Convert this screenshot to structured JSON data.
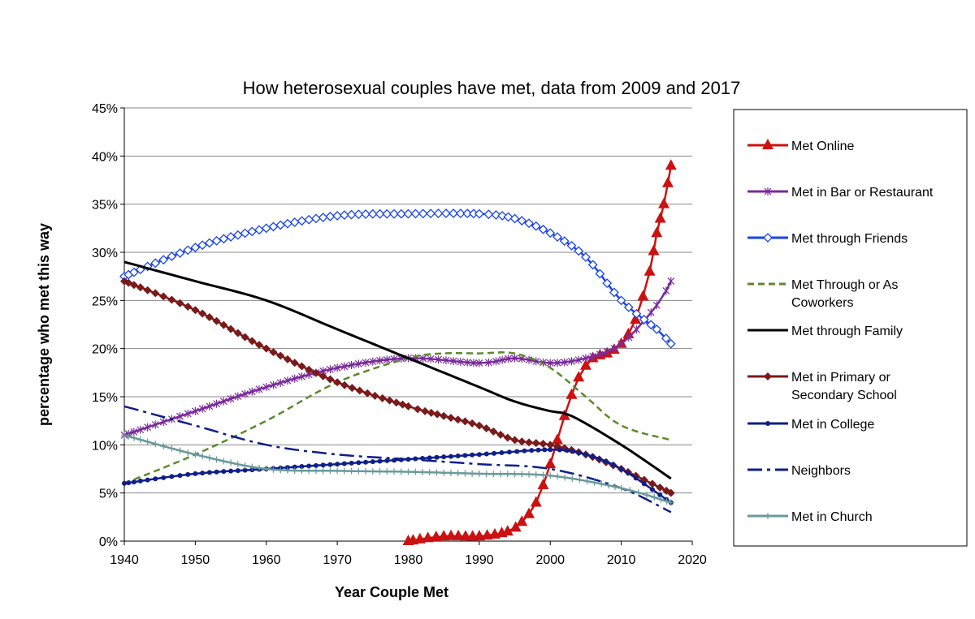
{
  "chart_data": {
    "type": "line",
    "title": "How heterosexual couples have met, data from 2009 and 2017",
    "xlabel": "Year Couple Met",
    "ylabel": "percentage who met this way",
    "xlim": [
      1940,
      2020
    ],
    "ylim": [
      0,
      45
    ],
    "x_ticks": [
      "1940",
      "1950",
      "1960",
      "1970",
      "1980",
      "1990",
      "2000",
      "2010",
      "2020"
    ],
    "y_ticks": [
      "0%",
      "5%",
      "10%",
      "15%",
      "20%",
      "25%",
      "30%",
      "35%",
      "40%",
      "45%"
    ],
    "grid": "horizontal",
    "legend_position": "right",
    "series": [
      {
        "name": "Met Online",
        "color": "#cc1111",
        "dash": "solid",
        "marker": "triangle",
        "x": [
          1980,
          1985,
          1990,
          1994,
          1996,
          1998,
          2000,
          2002,
          2004,
          2006,
          2008,
          2010,
          2012,
          2014,
          2015,
          2016,
          2017
        ],
        "y": [
          0,
          0.5,
          0.5,
          1,
          2,
          4,
          8,
          13,
          17,
          19,
          19.5,
          20.5,
          23,
          28,
          32,
          35,
          39
        ]
      },
      {
        "name": "Met in Bar or Restaurant",
        "color": "#7a2a9c",
        "dash": "solid",
        "marker": "star",
        "x": [
          1940,
          1950,
          1960,
          1970,
          1980,
          1990,
          1995,
          2000,
          2005,
          2010,
          2015,
          2017
        ],
        "y": [
          11,
          13.5,
          16,
          18,
          19,
          18.5,
          19,
          18.5,
          19,
          20.5,
          24.5,
          27
        ]
      },
      {
        "name": "Met through Friends",
        "color": "#1a44ee",
        "dash": "solid",
        "marker": "diamond",
        "x": [
          1940,
          1950,
          1960,
          1970,
          1980,
          1990,
          1995,
          2000,
          2005,
          2010,
          2015,
          2017
        ],
        "y": [
          27.5,
          30.5,
          32.5,
          33.8,
          34,
          34,
          33.5,
          32,
          29.5,
          25,
          22,
          20.5
        ]
      },
      {
        "name": "Met Through or As Coworkers",
        "color": "#5a8a2a",
        "dash": "dashed",
        "marker": "none",
        "x": [
          1940,
          1950,
          1960,
          1970,
          1980,
          1985,
          1990,
          1995,
          2000,
          2005,
          2010,
          2017
        ],
        "y": [
          6,
          9,
          12.5,
          16.5,
          19,
          19.5,
          19.5,
          19.5,
          18,
          15,
          12,
          10.5
        ]
      },
      {
        "name": "Met through Family",
        "color": "#000000",
        "dash": "solid",
        "marker": "none",
        "x": [
          1940,
          1950,
          1960,
          1970,
          1980,
          1985,
          1990,
          1995,
          2000,
          2003,
          2010,
          2017
        ],
        "y": [
          29,
          27,
          25,
          22,
          19,
          17.5,
          16,
          14.5,
          13.5,
          13,
          10,
          6.5
        ]
      },
      {
        "name": "Met in Primary or Secondary School",
        "color": "#7a1a1a",
        "dash": "solid",
        "marker": "diamond-filled",
        "x": [
          1940,
          1950,
          1960,
          1970,
          1980,
          1985,
          1990,
          1995,
          2000,
          2005,
          2010,
          2017
        ],
        "y": [
          27,
          24,
          20,
          16.5,
          14,
          13,
          12,
          10.5,
          10,
          9,
          7.5,
          5
        ]
      },
      {
        "name": "Met in College",
        "color": "#0f1f8a",
        "dash": "solid",
        "marker": "dot",
        "x": [
          1940,
          1950,
          1960,
          1970,
          1980,
          1990,
          2000,
          2005,
          2010,
          2017
        ],
        "y": [
          6,
          7,
          7.5,
          8,
          8.5,
          9,
          9.5,
          9,
          7.5,
          4
        ]
      },
      {
        "name": "Neighbors",
        "color": "#0f1f8a",
        "dash": "dashdot",
        "marker": "none",
        "x": [
          1940,
          1950,
          1960,
          1970,
          1980,
          1990,
          2000,
          2010,
          2017
        ],
        "y": [
          14,
          12,
          10,
          9,
          8.5,
          8,
          7.5,
          5.5,
          3
        ]
      },
      {
        "name": "Met in Church",
        "color": "#6a9a9a",
        "dash": "solid",
        "marker": "plus",
        "x": [
          1940,
          1950,
          1960,
          1970,
          1980,
          1990,
          2000,
          2010,
          2017
        ],
        "y": [
          11,
          9,
          7.5,
          7.3,
          7.2,
          7,
          6.8,
          5.5,
          4
        ]
      }
    ],
    "legend": [
      {
        "lines": [
          "Met Online"
        ],
        "series": 0
      },
      {
        "lines": [
          "Met in Bar or Restaurant"
        ],
        "series": 1
      },
      {
        "lines": [
          "Met through Friends"
        ],
        "series": 2
      },
      {
        "lines": [
          "Met Through or As",
          "Coworkers"
        ],
        "series": 3
      },
      {
        "lines": [
          "Met through Family"
        ],
        "series": 4
      },
      {
        "lines": [
          "Met in Primary or",
          "Secondary School"
        ],
        "series": 5
      },
      {
        "lines": [
          "Met in College"
        ],
        "series": 6
      },
      {
        "lines": [
          "Neighbors"
        ],
        "series": 7
      },
      {
        "lines": [
          "Met in Church"
        ],
        "series": 8
      }
    ]
  }
}
